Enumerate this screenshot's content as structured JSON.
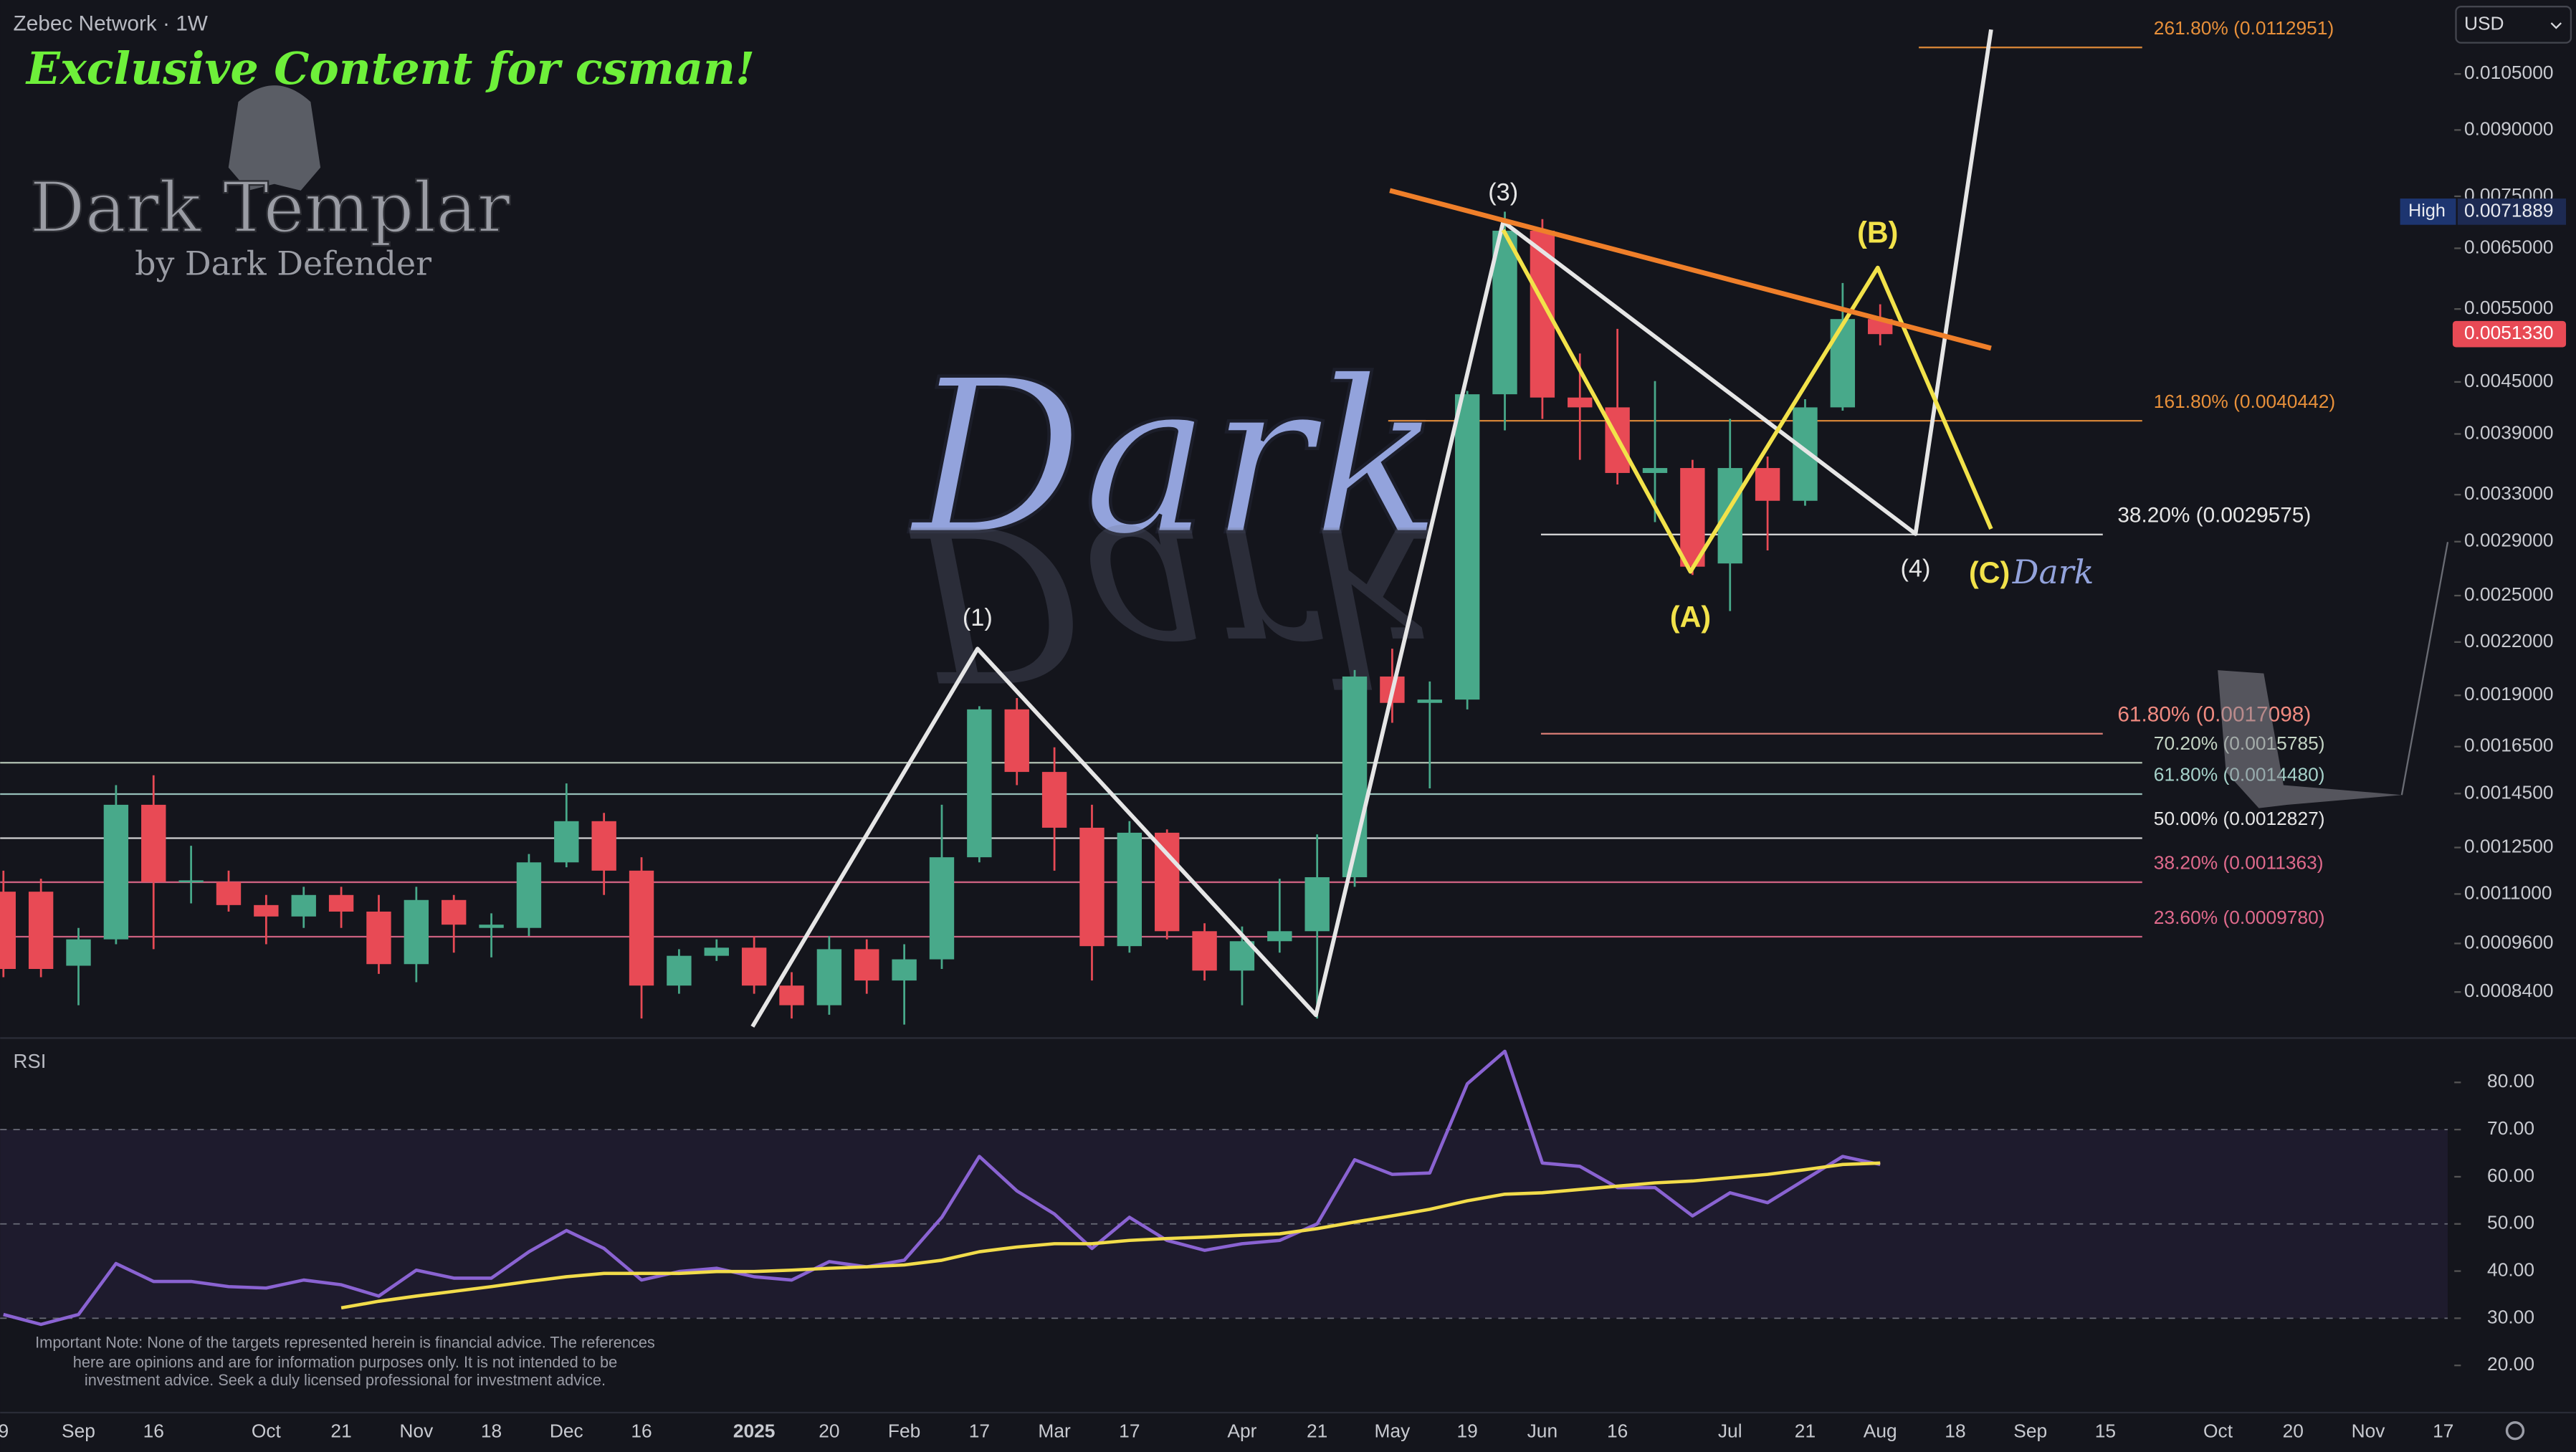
{
  "header": {
    "symbol": "Zebec Network · 1W",
    "currency": "USD"
  },
  "watermark": {
    "tagline": "Exclusive Content for csman!",
    "brand": "Dark Templar",
    "byline": "by Dark Defender",
    "mark": "Dark",
    "mark_small": "Dark"
  },
  "disclaimer": [
    "Important Note: None of the targets represented herein is financial advice. The references",
    "here are opinions and are for information purposes only. It is not intended to be",
    "investment advice. Seek a duly licensed professional for investment advice."
  ],
  "chart_data": [
    {
      "type": "candlestick",
      "log_scale": true,
      "up_color": "#48a98a",
      "down_color": "#e84a55",
      "categories": [
        "9",
        null,
        "Sep",
        null,
        "16",
        null,
        null,
        "Oct",
        null,
        "21",
        null,
        "Nov",
        null,
        "18",
        null,
        "Dec",
        null,
        "16",
        null,
        null,
        "2025",
        null,
        "20",
        null,
        "Feb",
        null,
        "17",
        null,
        "Mar",
        null,
        "17",
        null,
        null,
        "Apr",
        null,
        "21",
        null,
        "May",
        null,
        "19",
        null,
        "Jun",
        null,
        "16",
        null,
        null,
        "Jul",
        null,
        "21",
        null,
        "Aug",
        null,
        "18",
        null,
        "Sep",
        null,
        "15",
        null,
        null,
        "Oct",
        null,
        "20",
        null,
        "Nov",
        null,
        "17"
      ],
      "open": [
        0.001107,
        0.001107,
        0.000903,
        0.000971,
        0.001406,
        0.001137,
        0.001137,
        0.001067,
        0.001034,
        0.001097,
        0.001048,
        0.000907,
        0.001082,
        0.001002,
        0.001002,
        0.0012,
        0.001344,
        0.001173,
        0.000855,
        0.000928,
        0.000949,
        0.000855,
        0.00081,
        0.000945,
        0.000867,
        0.000919,
        0.001217,
        0.001828,
        0.001539,
        0.00132,
        0.000953,
        0.001302,
        0.000993,
        0.000891,
        0.000966,
        0.000993,
        0.001152,
        0.002001,
        0.001861,
        0.001878,
        0.00435,
        0.006822,
        0.004311,
        0.004196,
        0.003503,
        0.003551,
        0.002731,
        0.003551,
        0.003245,
        0.004196,
        0.00535,
        null,
        null,
        null,
        null,
        null,
        null,
        null,
        null,
        null,
        null,
        null,
        null,
        null,
        null,
        null
      ],
      "high": [
        0.001173,
        0.001147,
        0.001002,
        0.001484,
        0.001525,
        0.001256,
        0.001173,
        0.001097,
        0.001122,
        0.001122,
        0.001097,
        0.001122,
        0.001097,
        0.001043,
        0.001228,
        0.001491,
        0.001375,
        0.001217,
        0.000945,
        0.000971,
        0.00098,
        0.000887,
        0.00098,
        0.000971,
        0.000958,
        0.001406,
        0.001844,
        0.001886,
        0.001647,
        0.001406,
        0.001344,
        0.001314,
        0.001015,
        0.001006,
        0.001147,
        0.001296,
        0.002037,
        0.00216,
        0.001974,
        0.00439,
        0.0071889,
        0.007043,
        0.004866,
        0.005207,
        0.00451,
        0.003632,
        0.004065,
        0.003665,
        0.004291,
        0.005908,
        0.005572,
        null,
        null,
        null,
        null,
        null,
        null,
        null,
        null,
        null,
        null,
        null,
        null,
        null,
        null,
        null
      ],
      "low": [
        0.000875,
        0.000875,
        0.00081,
        0.000958,
        0.000945,
        0.001072,
        0.001048,
        0.000958,
        0.001002,
        0.001002,
        0.000883,
        0.000863,
        0.000936,
        0.000924,
        0.00098,
        0.001184,
        0.001097,
        0.000781,
        0.000836,
        0.000915,
        0.000836,
        0.000781,
        0.000789,
        0.000836,
        0.000768,
        0.000895,
        0.0012,
        0.001484,
        0.001173,
        0.000867,
        0.000936,
        0.000971,
        0.000867,
        0.00081,
        0.000936,
        0.000781,
        0.001122,
        0.001762,
        0.001471,
        0.001828,
        0.003939,
        0.004065,
        0.003632,
        0.003394,
        0.00306,
        0.002646,
        0.002396,
        0.002831,
        0.003201,
        0.004158,
        0.004977,
        null,
        null,
        null,
        null,
        null,
        null,
        null,
        null,
        null,
        null,
        null,
        null,
        null,
        null,
        null
      ],
      "close": [
        0.000895,
        0.000895,
        0.000971,
        0.001406,
        0.001137,
        0.001142,
        0.001067,
        0.001034,
        0.001097,
        0.001048,
        0.000907,
        0.001082,
        0.001011,
        0.001011,
        0.0012,
        0.001344,
        0.001173,
        0.000855,
        0.000928,
        0.000949,
        0.000855,
        0.00081,
        0.000945,
        0.000867,
        0.000919,
        0.001217,
        0.001828,
        0.001539,
        0.00132,
        0.000953,
        0.001302,
        0.000993,
        0.000891,
        0.000966,
        0.000993,
        0.001152,
        0.002001,
        0.001861,
        0.001878,
        0.00435,
        0.006822,
        0.004311,
        0.004196,
        0.003503,
        0.003551,
        0.002707,
        0.003551,
        0.003245,
        0.004196,
        0.00535,
        0.005133,
        null,
        null,
        null,
        null,
        null,
        null,
        null,
        null,
        null,
        null,
        null,
        null,
        null,
        null,
        null
      ],
      "ylim": [
        0.00074,
        0.01287
      ],
      "yticks": [
        {
          "value": 0.0105,
          "label": "0.0105000"
        },
        {
          "value": 0.009,
          "label": "0.0090000"
        },
        {
          "value": 0.0075,
          "label": "0.0075000"
        },
        {
          "value": 0.0065,
          "label": "0.0065000"
        },
        {
          "value": 0.0055,
          "label": "0.0055000"
        },
        {
          "value": 0.0045,
          "label": "0.0045000"
        },
        {
          "value": 0.0039,
          "label": "0.0039000"
        },
        {
          "value": 0.0033,
          "label": "0.0033000"
        },
        {
          "value": 0.0029,
          "label": "0.0029000"
        },
        {
          "value": 0.0025,
          "label": "0.0025000"
        },
        {
          "value": 0.0022,
          "label": "0.0022000"
        },
        {
          "value": 0.0019,
          "label": "0.0019000"
        },
        {
          "value": 0.00165,
          "label": "0.0016500"
        },
        {
          "value": 0.00145,
          "label": "0.0014500"
        },
        {
          "value": 0.00125,
          "label": "0.0012500"
        },
        {
          "value": 0.0011,
          "label": "0.0011000"
        },
        {
          "value": 0.00096,
          "label": "0.0009600"
        },
        {
          "value": 0.00084,
          "label": "0.0008400"
        }
      ],
      "levels": [
        {
          "label": "261.80% (0.0112951)",
          "value": 0.0112951,
          "color": "#e8903a"
        },
        {
          "label": "161.80% (0.0040442)",
          "value": 0.0040442,
          "color": "#e8903a"
        },
        {
          "label": "38.20% (0.0029575)",
          "value": 0.0029575,
          "color": "#e6e6e6"
        },
        {
          "label": "61.80% (0.0017098)",
          "value": 0.0017098,
          "color": "#f08a80"
        },
        {
          "label": "70.20% (0.0015785)",
          "value": 0.0015785,
          "color": "#c4d4c4"
        },
        {
          "label": "61.80% (0.0014480)",
          "value": 0.001448,
          "color": "#a6d2ca"
        },
        {
          "label": "50.00% (0.0012827)",
          "value": 0.0012827,
          "color": "#e6e6e6"
        },
        {
          "label": "38.20% (0.0011363)",
          "value": 0.0011363,
          "color": "#e06a8c"
        },
        {
          "label": "23.60% (0.0009780)",
          "value": 0.000978,
          "color": "#e06a8c"
        }
      ],
      "annotations": [
        "(1)",
        "(3)",
        "(4)",
        "(A)",
        "(B)",
        "(C)"
      ],
      "high_marker": {
        "label": "High",
        "value": 0.0071889
      },
      "last_price": {
        "value": 0.005133,
        "label": "0.0051330"
      }
    },
    {
      "type": "line",
      "title": "RSI",
      "series": [
        {
          "color": "#8a63d2",
          "values": [
            30.8,
            28.7,
            30.8,
            41.6,
            37.8,
            37.8,
            36.7,
            36.4,
            38.1,
            37.1,
            34.7,
            40.2,
            38.5,
            38.5,
            44.1,
            48.6,
            44.8,
            38.1,
            39.9,
            40.6,
            38.8,
            38.1,
            42.0,
            40.9,
            42.3,
            51.4,
            64.3,
            57.0,
            52.1,
            44.8,
            51.4,
            46.5,
            44.4,
            45.8,
            46.5,
            50.0,
            63.6,
            60.5,
            60.8,
            79.7,
            86.6,
            62.9,
            62.2,
            57.7,
            57.7,
            51.7,
            56.6,
            54.5,
            59.4,
            64.3,
            62.6,
            null,
            null,
            null,
            null,
            null,
            null,
            null,
            null,
            null,
            null,
            null,
            null,
            null,
            null,
            null
          ]
        },
        {
          "color": "#f2dc4a",
          "values": [
            null,
            null,
            null,
            null,
            null,
            null,
            null,
            null,
            null,
            32.2,
            33.6,
            34.7,
            35.7,
            36.7,
            37.8,
            38.8,
            39.5,
            39.5,
            39.5,
            39.9,
            39.9,
            40.2,
            40.6,
            40.9,
            41.3,
            42.3,
            44.1,
            45.1,
            45.8,
            45.8,
            46.5,
            46.9,
            47.2,
            47.6,
            47.9,
            49.0,
            50.4,
            51.7,
            53.1,
            54.9,
            56.3,
            56.6,
            57.3,
            58.0,
            58.7,
            59.1,
            59.8,
            60.5,
            61.5,
            62.6,
            62.9,
            null,
            null,
            null,
            null,
            null,
            null,
            null,
            null,
            null,
            null,
            null,
            null,
            null,
            null,
            null
          ]
        }
      ],
      "ylim": [
        10,
        88.7
      ],
      "yticks": [
        {
          "value": 80,
          "label": "80.00"
        },
        {
          "value": 70,
          "label": "70.00"
        },
        {
          "value": 60,
          "label": "60.00"
        },
        {
          "value": 50,
          "label": "50.00"
        },
        {
          "value": 40,
          "label": "40.00"
        },
        {
          "value": 30,
          "label": "30.00"
        },
        {
          "value": 20,
          "label": "20.00"
        }
      ],
      "reference_lines": [
        70,
        50,
        30
      ],
      "band": [
        30,
        70
      ]
    }
  ]
}
